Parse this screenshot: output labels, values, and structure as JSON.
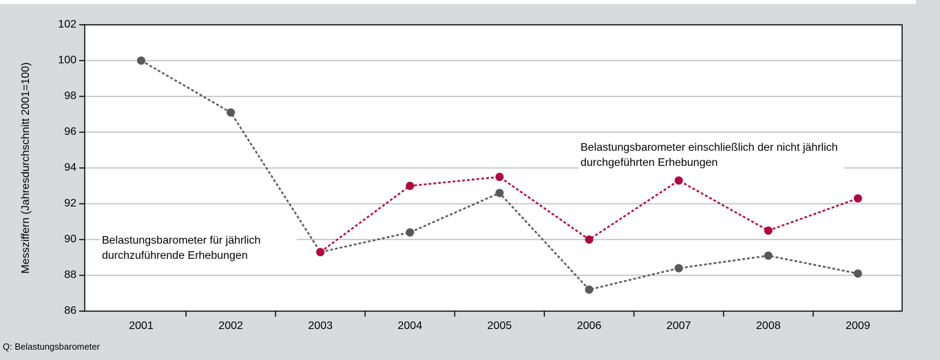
{
  "chart_data": {
    "type": "line",
    "y_label": "Messziffern (Jahresdurchschnitt 2001=100)",
    "source": "Q: Belastungsbarometer",
    "categories": [
      "2001",
      "2002",
      "2003",
      "2004",
      "2005",
      "2006",
      "2007",
      "2008",
      "2009"
    ],
    "series": [
      {
        "name": "Belastungsbarometer für jährlich durchzuführende Erhebungen",
        "color": "#58595b",
        "values": [
          100,
          97.1,
          89.3,
          90.4,
          92.6,
          87.2,
          88.4,
          89.1,
          88.1
        ]
      },
      {
        "name": "Belastungsbarometer einschließlich der nicht jährlich durchgeführten Erhebungen",
        "color": "#ad0a40",
        "values": [
          null,
          null,
          89.3,
          93,
          93.5,
          90,
          93.3,
          90.5,
          92.3
        ]
      }
    ],
    "ylim": [
      86,
      102
    ],
    "yticks": [
      86,
      88,
      90,
      92,
      94,
      96,
      98,
      100,
      102
    ],
    "grid": true
  }
}
